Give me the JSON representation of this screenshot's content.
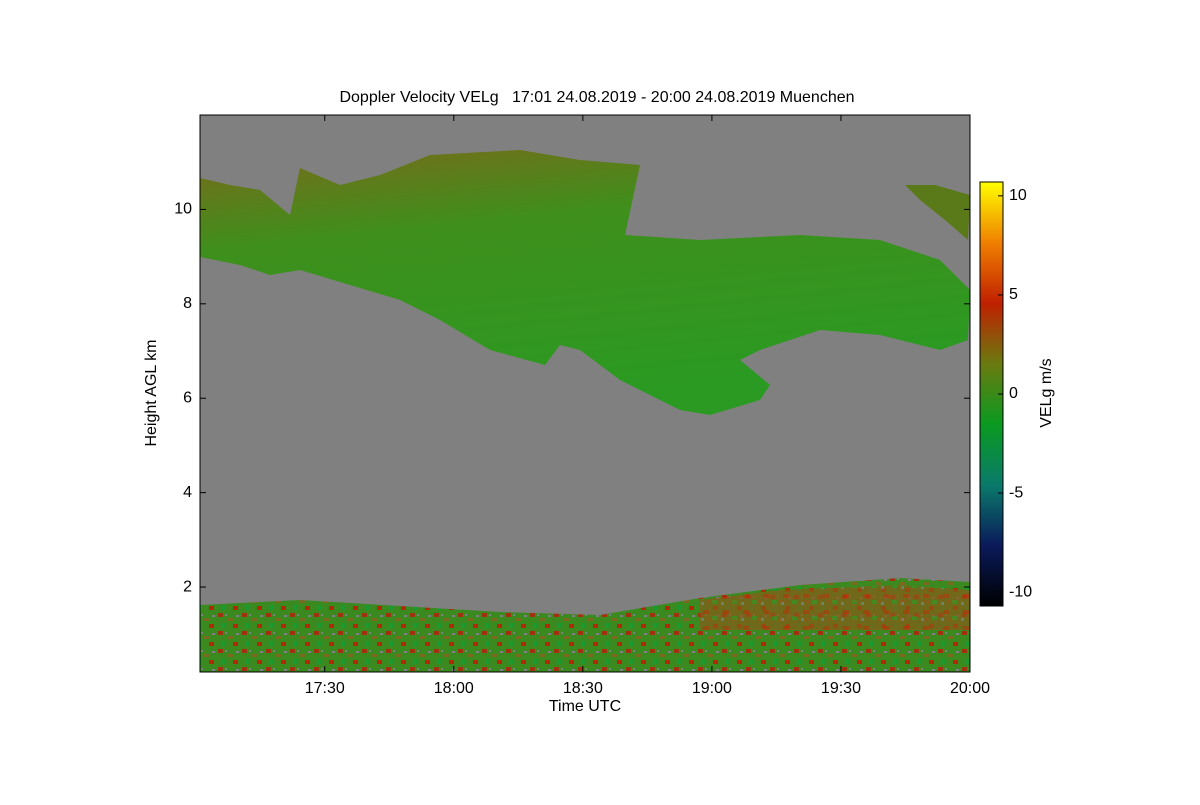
{
  "chart_data": {
    "type": "heatmap",
    "title": "Doppler Velocity VELg   17:01 24.08.2019 - 20:00 24.08.2019 Muenchen",
    "x_label": "Time UTC",
    "y_label": "Height AGL km",
    "xlim": [
      1021,
      1200
    ],
    "xticks": [
      {
        "value": 1050,
        "label": "17:30"
      },
      {
        "value": 1080,
        "label": "18:00"
      },
      {
        "value": 1110,
        "label": "18:30"
      },
      {
        "value": 1140,
        "label": "19:00"
      },
      {
        "value": 1170,
        "label": "19:30"
      },
      {
        "value": 1200,
        "label": "20:00"
      }
    ],
    "ylim": [
      0.2,
      12
    ],
    "yticks": [
      2,
      4,
      6,
      8,
      10
    ],
    "background": "#808080",
    "colorbar": {
      "label": "VELg m/s",
      "lim": [
        -10.7,
        10.7
      ],
      "ticks": [
        -10,
        -5,
        0,
        5,
        10
      ],
      "colors": [
        "#000000",
        "#0a1a5a",
        "#0a7a6a",
        "#0a9a20",
        "#6a7a10",
        "#c02000",
        "#f08000",
        "#ffff00"
      ]
    }
  }
}
